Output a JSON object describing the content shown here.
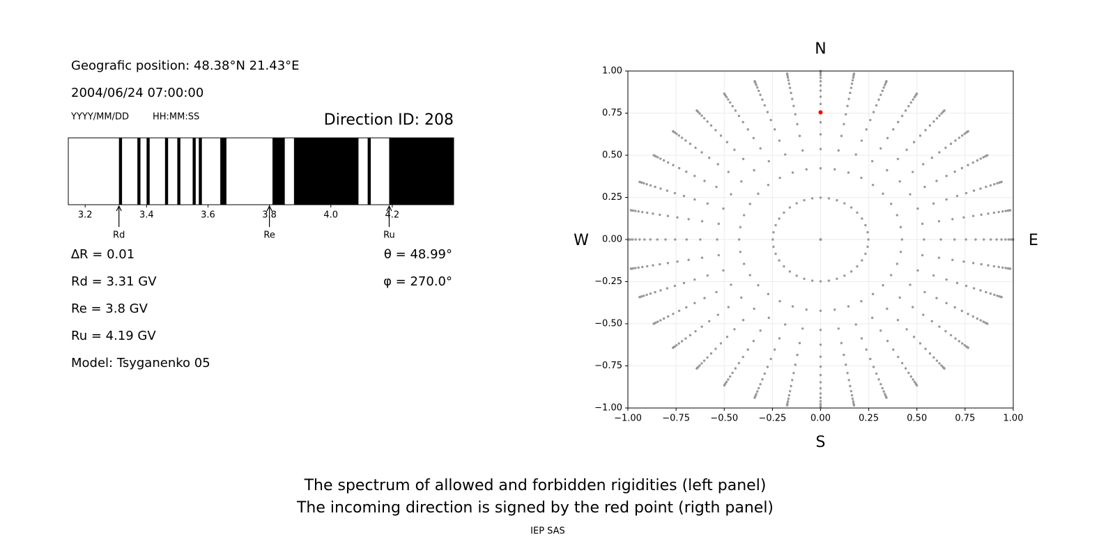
{
  "header": {
    "position": "Geografic position: 48.38°N 21.43°E",
    "datetime": "2004/06/24 07:00:00",
    "date_format": "YYYY/MM/DD",
    "time_format": "HH:MM:SS",
    "direction": "Direction ID: 208"
  },
  "results": {
    "delta_r": "∆R = 0.01",
    "rd": "Rd = 3.31 GV",
    "re": "Re = 3.8 GV",
    "ru": "Ru = 4.19 GV",
    "model": "Model: Tsyganenko 05",
    "theta": "θ = 48.99°",
    "phi": "φ = 270.0°"
  },
  "chart_data": [
    {
      "type": "spectrum",
      "xlim": [
        3.145,
        4.4
      ],
      "xticks": [
        3.2,
        3.4,
        3.6,
        3.8,
        {
          "value": 4,
          "label": "4.0"
        },
        4.2
      ],
      "color": "#000000",
      "bands": [
        [
          3.31,
          3.32
        ],
        [
          3.37,
          3.38
        ],
        [
          3.4,
          3.41
        ],
        [
          3.46,
          3.47
        ],
        [
          3.5,
          3.51
        ],
        [
          3.55,
          3.56
        ],
        [
          3.57,
          3.58
        ],
        [
          3.64,
          3.66
        ],
        [
          3.81,
          3.85
        ],
        [
          3.88,
          4.09
        ],
        [
          4.12,
          4.13
        ],
        [
          4.19,
          4.4
        ]
      ],
      "markers": [
        {
          "label": "Rd",
          "value": 3.31
        },
        {
          "label": "Re",
          "value": 3.8
        },
        {
          "label": "Ru",
          "value": 4.19
        }
      ]
    },
    {
      "type": "polar",
      "xlim": [
        -1,
        1
      ],
      "ylim": [
        -1,
        1
      ],
      "xticks": [
        {
          "value": -1,
          "label": "−1.00"
        },
        {
          "value": -0.75,
          "label": "−0.75"
        },
        {
          "value": -0.5,
          "label": "−0.50"
        },
        {
          "value": -0.25,
          "label": "−0.25"
        },
        {
          "value": 0,
          "label": "0.00"
        },
        {
          "value": 0.25,
          "label": "0.25"
        },
        {
          "value": 0.5,
          "label": "0.50"
        },
        {
          "value": 0.75,
          "label": "0.75"
        },
        {
          "value": 1,
          "label": "1.00"
        }
      ],
      "yticks": [
        {
          "value": -1,
          "label": "−1.00"
        },
        {
          "value": -0.75,
          "label": "−0.75"
        },
        {
          "value": -0.5,
          "label": "−0.50"
        },
        {
          "value": -0.25,
          "label": "−0.25"
        },
        {
          "value": 0,
          "label": "0.00"
        },
        {
          "value": 0.25,
          "label": "0.25"
        },
        {
          "value": 0.5,
          "label": "0.50"
        },
        {
          "value": 0.75,
          "label": "0.75"
        },
        {
          "value": 1,
          "label": "1.00"
        }
      ],
      "grid": true,
      "color": "#999999",
      "r": [
        0,
        0.248,
        0.4227,
        0.5367,
        0.6242,
        0.6953,
        0.7545,
        0.8047,
        0.8472,
        0.8833,
        0.9138,
        0.9391,
        0.9596,
        0.9758,
        0.9877,
        0.9956,
        0.9995
      ],
      "angles": [
        0,
        10,
        20,
        30,
        40,
        50,
        60,
        70,
        80,
        90,
        100,
        110,
        120,
        130,
        140,
        150,
        160,
        170,
        180,
        190,
        200,
        210,
        220,
        230,
        240,
        250,
        260,
        270,
        280,
        290,
        300,
        310,
        320,
        330,
        340,
        350
      ],
      "highlight": {
        "r": 0.7545,
        "angle": 90,
        "color": "#ff0000"
      },
      "compass": {
        "north": "N",
        "south": "S",
        "west": "W",
        "east": "E"
      }
    }
  ],
  "caption": [
    "The spectrum of allowed and forbidden rigidities (left panel)",
    "The incoming direction is signed by the red point (rigth panel)"
  ],
  "footer": "IEP SAS"
}
